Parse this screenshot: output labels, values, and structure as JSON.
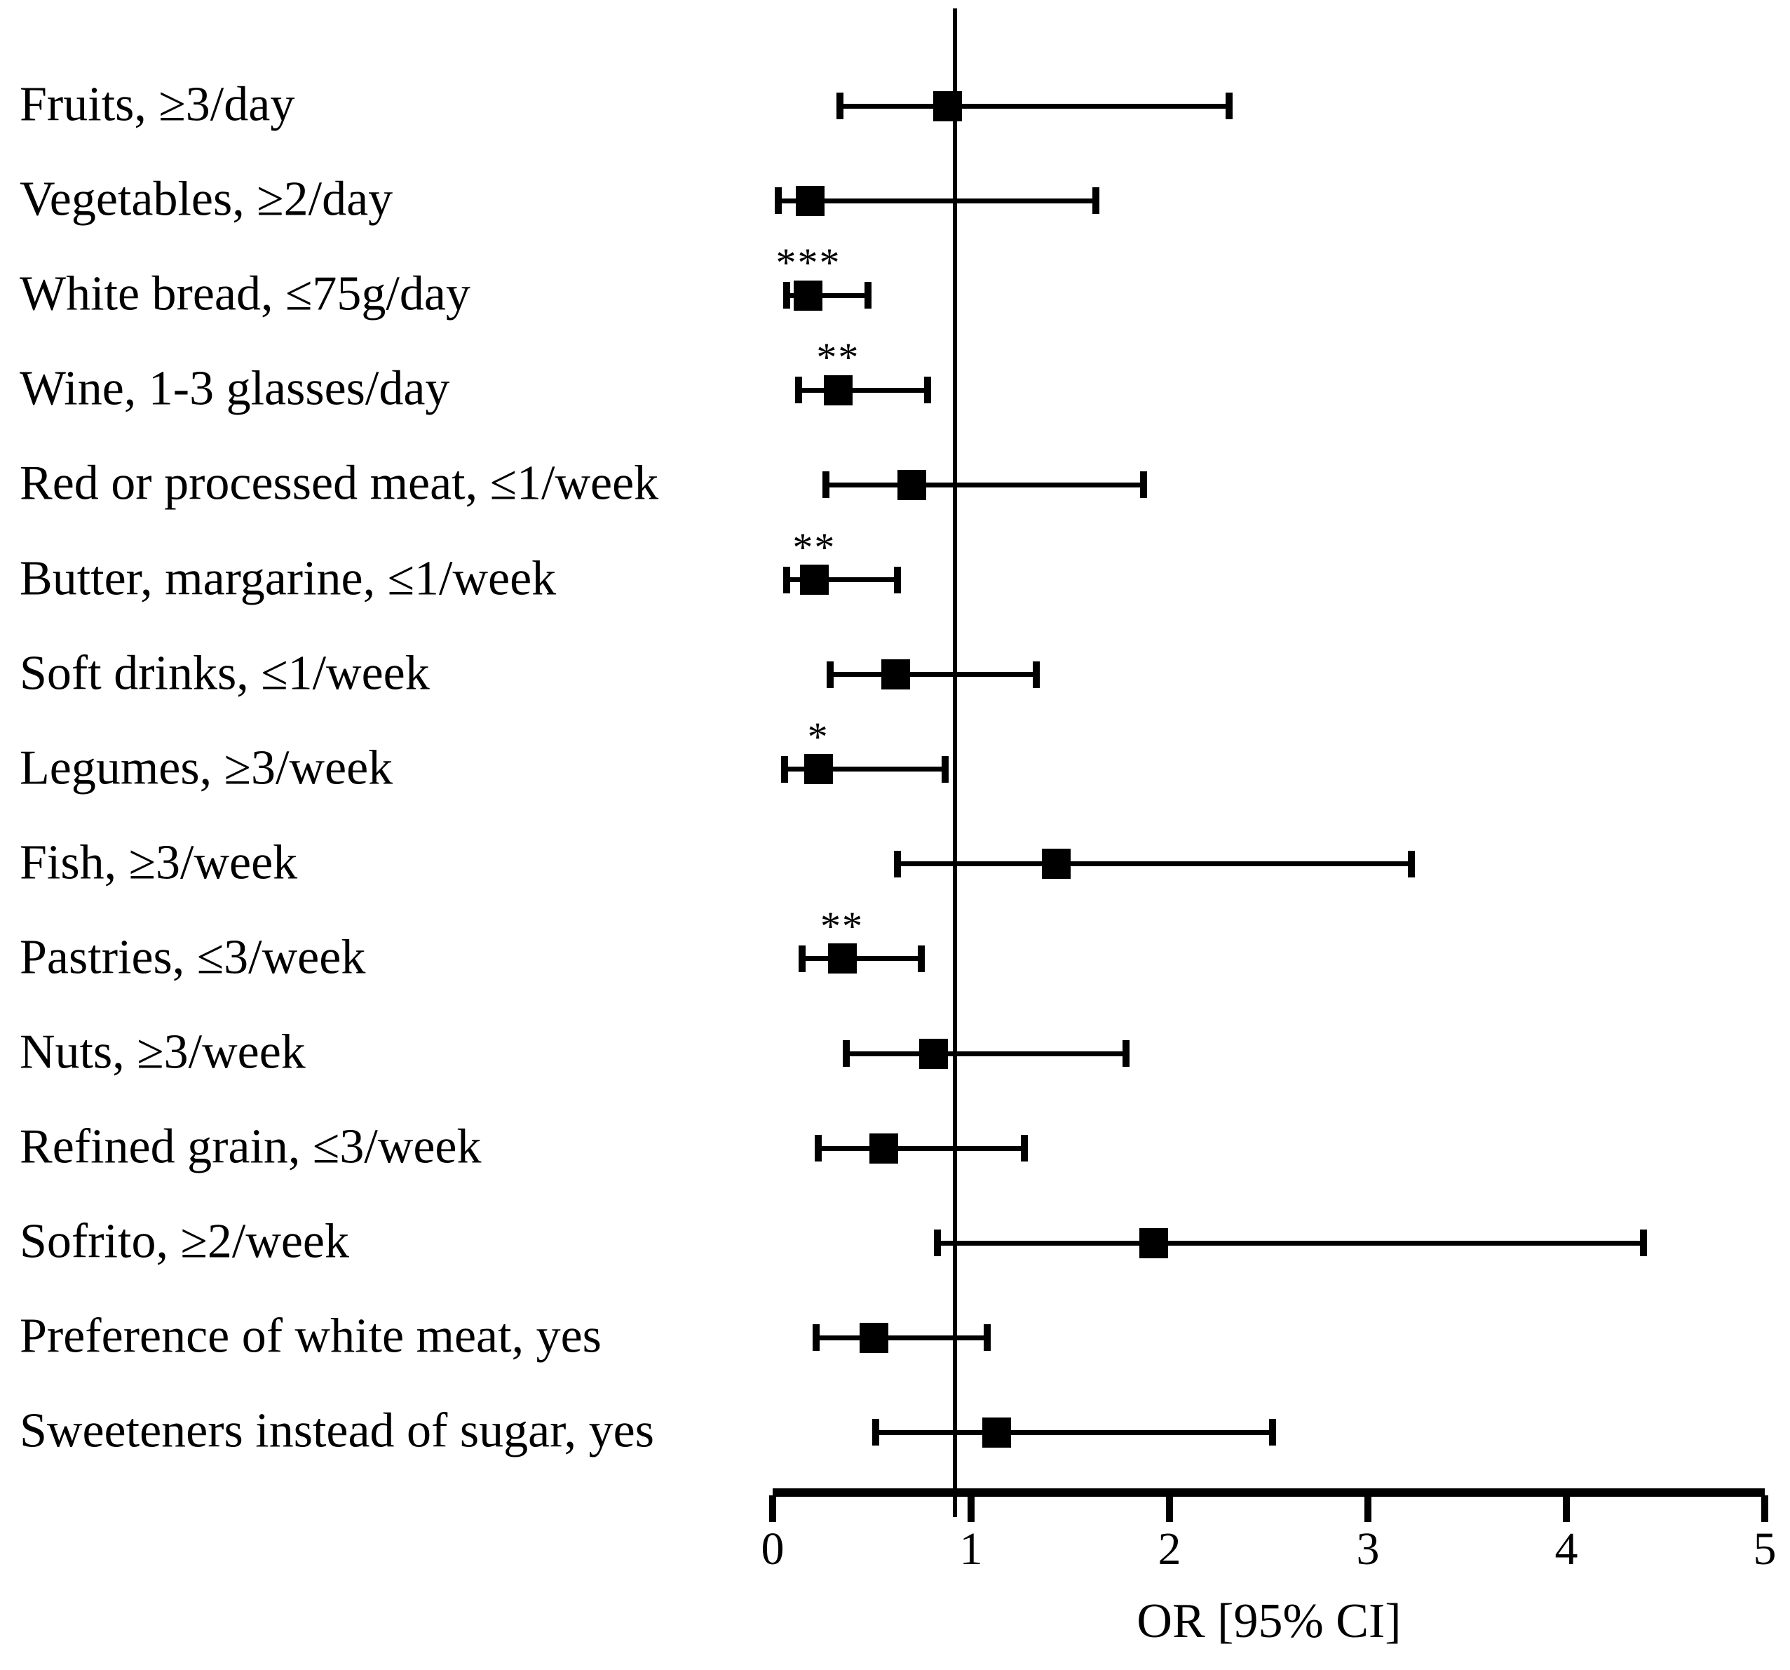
{
  "figure": {
    "background_color": "#ffffff",
    "ink_color": "#000000"
  },
  "chart_data": {
    "type": "forest_plot",
    "title": "",
    "xlabel": "OR [95% CI]",
    "xlim": [
      0,
      5
    ],
    "x_ticks": [
      0,
      1,
      2,
      3,
      4,
      5
    ],
    "grid": false,
    "legend": false,
    "reference_line_or": 0.92,
    "marker": "filled-square",
    "rows": [
      {
        "label": "Fruits, ≥3/day",
        "significance": "",
        "or": 0.88,
        "ci_low": 0.34,
        "ci_high": 2.3
      },
      {
        "label": "Vegetables, ≥2/day",
        "significance": "",
        "or": 0.19,
        "ci_low": 0.03,
        "ci_high": 1.63
      },
      {
        "label": "White bread, ≤75g/day",
        "significance": "***",
        "or": 0.18,
        "ci_low": 0.07,
        "ci_high": 0.48
      },
      {
        "label": "Wine, 1-3 glasses/day",
        "significance": "**",
        "or": 0.33,
        "ci_low": 0.13,
        "ci_high": 0.78
      },
      {
        "label": "Red or processed meat, ≤1/week",
        "significance": "",
        "or": 0.7,
        "ci_low": 0.27,
        "ci_high": 1.87
      },
      {
        "label": "Butter, margarine, ≤1/week",
        "significance": "**",
        "or": 0.21,
        "ci_low": 0.07,
        "ci_high": 0.63
      },
      {
        "label": "Soft drinks, ≤1/week",
        "significance": "",
        "or": 0.62,
        "ci_low": 0.29,
        "ci_high": 1.33
      },
      {
        "label": "Legumes, ≥3/week",
        "significance": "*",
        "or": 0.23,
        "ci_low": 0.06,
        "ci_high": 0.87
      },
      {
        "label": "Fish, ≥3/week",
        "significance": "",
        "or": 1.43,
        "ci_low": 0.63,
        "ci_high": 3.22
      },
      {
        "label": "Pastries, ≤3/week",
        "significance": "**",
        "or": 0.35,
        "ci_low": 0.15,
        "ci_high": 0.75
      },
      {
        "label": "Nuts, ≥3/week",
        "significance": "",
        "or": 0.81,
        "ci_low": 0.37,
        "ci_high": 1.78
      },
      {
        "label": "Refined grain, ≤3/week",
        "significance": "",
        "or": 0.56,
        "ci_low": 0.23,
        "ci_high": 1.27
      },
      {
        "label": "Sofrito, ≥2/week",
        "significance": "",
        "or": 1.92,
        "ci_low": 0.83,
        "ci_high": 4.39
      },
      {
        "label": "Preference of white meat, yes",
        "significance": "",
        "or": 0.51,
        "ci_low": 0.22,
        "ci_high": 1.08
      },
      {
        "label": "Sweeteners instead of sugar, yes",
        "significance": "",
        "or": 1.13,
        "ci_low": 0.52,
        "ci_high": 2.52
      }
    ]
  }
}
